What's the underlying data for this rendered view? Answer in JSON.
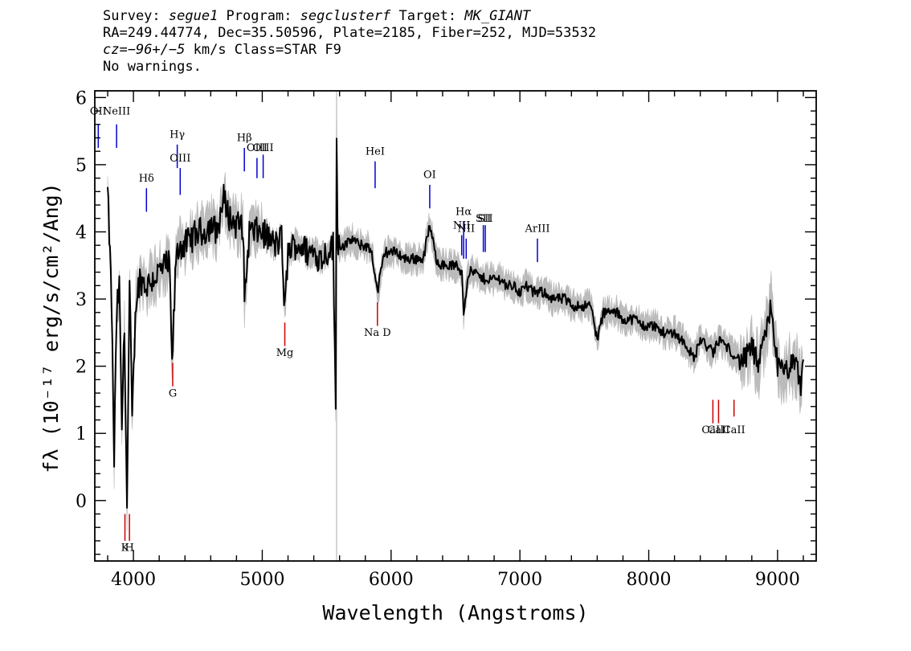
{
  "header": {
    "survey_label": "Survey: ",
    "survey": "segue1",
    "program_label": " Program: ",
    "program": "segclusterf",
    "target_label": " Target: ",
    "target": "MK_GIANT",
    "line2": "RA=249.44774, Dec=35.50596, Plate=2185, Fiber=252, MJD=53532",
    "cz_label": "cz",
    "cz_value": "=−96+/−5",
    "cz_rest": " km/s Class=STAR F9",
    "line4": "No warnings."
  },
  "chart_data": {
    "type": "line",
    "title": "",
    "xlabel": "Wavelength (Angstroms)",
    "ylabel": "fλ (10⁻¹⁷ erg/s/cm²/Ang)",
    "xlim": [
      3700,
      9300
    ],
    "ylim": [
      -0.9,
      6.1
    ],
    "x_ticks": [
      4000,
      5000,
      6000,
      7000,
      8000,
      9000
    ],
    "y_ticks": [
      0,
      1,
      2,
      3,
      4,
      5,
      6
    ],
    "grid": false,
    "colors": {
      "flux": "#000000",
      "error": "#bbbbbb",
      "emission": "#0000cc",
      "absorption": "#cc0000",
      "sky": "#c8c8c8"
    },
    "sky_line_x": 5577,
    "series": [
      {
        "name": "flux",
        "x": [
          3800,
          3830,
          3850,
          3870,
          3890,
          3910,
          3930,
          3950,
          3970,
          3990,
          4020,
          4050,
          4100,
          4150,
          4200,
          4250,
          4280,
          4300,
          4330,
          4360,
          4400,
          4450,
          4500,
          4550,
          4600,
          4650,
          4700,
          4750,
          4800,
          4850,
          4862,
          4900,
          4950,
          5000,
          5050,
          5100,
          5150,
          5175,
          5200,
          5250,
          5300,
          5350,
          5400,
          5450,
          5500,
          5550,
          5570,
          5577,
          5585,
          5600,
          5650,
          5700,
          5750,
          5800,
          5850,
          5893,
          5950,
          6000,
          6050,
          6100,
          6150,
          6200,
          6250,
          6300,
          6350,
          6400,
          6450,
          6500,
          6550,
          6563,
          6600,
          6650,
          6700,
          6750,
          6800,
          6850,
          6900,
          6950,
          7000,
          7050,
          7100,
          7150,
          7200,
          7250,
          7300,
          7350,
          7400,
          7450,
          7500,
          7550,
          7600,
          7650,
          7700,
          7750,
          7800,
          7850,
          7900,
          7950,
          8000,
          8050,
          8100,
          8150,
          8200,
          8250,
          8300,
          8350,
          8400,
          8450,
          8500,
          8550,
          8600,
          8650,
          8700,
          8750,
          8800,
          8850,
          8900,
          8950,
          9000,
          9050,
          9100,
          9150,
          9180,
          9200
        ],
        "y": [
          4.6,
          3.0,
          0.6,
          2.8,
          3.2,
          1.1,
          2.6,
          -0.1,
          3.2,
          1.2,
          3.0,
          3.3,
          3.2,
          3.3,
          3.4,
          3.5,
          3.5,
          2.0,
          3.6,
          3.8,
          3.8,
          3.9,
          4.0,
          4.0,
          4.1,
          4.0,
          4.5,
          4.2,
          4.1,
          4.1,
          3.0,
          4.0,
          4.0,
          4.0,
          3.9,
          3.8,
          3.9,
          2.8,
          3.7,
          3.8,
          3.8,
          3.7,
          3.7,
          3.6,
          3.7,
          3.8,
          1.3,
          5.6,
          3.9,
          3.8,
          3.8,
          3.9,
          3.8,
          3.8,
          3.7,
          3.1,
          3.7,
          3.7,
          3.7,
          3.6,
          3.6,
          3.6,
          3.6,
          4.1,
          3.6,
          3.5,
          3.5,
          3.5,
          3.4,
          2.8,
          3.4,
          3.4,
          3.3,
          3.3,
          3.3,
          3.3,
          3.2,
          3.2,
          3.1,
          3.2,
          3.1,
          3.1,
          3.1,
          3.0,
          3.0,
          3.0,
          2.9,
          2.9,
          2.9,
          2.9,
          2.4,
          2.8,
          2.8,
          2.8,
          2.7,
          2.7,
          2.7,
          2.6,
          2.6,
          2.6,
          2.5,
          2.5,
          2.5,
          2.4,
          2.3,
          2.1,
          2.4,
          2.3,
          2.2,
          2.4,
          2.3,
          2.2,
          2.1,
          2.1,
          2.3,
          2.0,
          2.4,
          2.9,
          2.0,
          1.9,
          2.0,
          2.0,
          1.7,
          2.1
        ]
      }
    ],
    "lines": [
      {
        "label": "OII",
        "x": 3727,
        "kind": "emission",
        "y0": 5.25,
        "y1": 5.6,
        "label_y": 5.75
      },
      {
        "label": "NeIII",
        "x": 3869,
        "kind": "emission",
        "y0": 5.25,
        "y1": 5.6,
        "label_y": 5.75
      },
      {
        "label": "Hδ",
        "x": 4101,
        "kind": "emission",
        "y0": 4.3,
        "y1": 4.65,
        "label_y": 4.75
      },
      {
        "label": "Hγ",
        "x": 4340,
        "kind": "emission",
        "y0": 4.95,
        "y1": 5.3,
        "label_y": 5.4
      },
      {
        "label": "OIII",
        "x": 4363,
        "kind": "emission",
        "y0": 4.55,
        "y1": 4.95,
        "label_y": 5.05
      },
      {
        "label": "Hβ",
        "x": 4861,
        "kind": "emission",
        "y0": 4.9,
        "y1": 5.25,
        "label_y": 5.35
      },
      {
        "label": "OIII",
        "x": 4959,
        "kind": "emission",
        "y0": 4.8,
        "y1": 5.1,
        "label_y": 5.2
      },
      {
        "label": "OIII",
        "x": 5007,
        "kind": "emission",
        "y0": 4.8,
        "y1": 5.15,
        "label_y": 5.2
      },
      {
        "label": "HeI",
        "x": 5876,
        "kind": "emission",
        "y0": 4.65,
        "y1": 5.05,
        "label_y": 5.15
      },
      {
        "label": "OI",
        "x": 6300,
        "kind": "emission",
        "y0": 4.35,
        "y1": 4.7,
        "label_y": 4.8
      },
      {
        "label": "NII",
        "x": 6548,
        "kind": "emission",
        "y0": 3.65,
        "y1": 3.95,
        "label_y": 4.05
      },
      {
        "label": "Hα",
        "x": 6563,
        "kind": "emission",
        "y0": 3.6,
        "y1": 4.15,
        "label_y": 4.25
      },
      {
        "label": "NII",
        "x": 6583,
        "kind": "emission",
        "y0": 3.6,
        "y1": 3.9,
        "label_y": 4.0
      },
      {
        "label": "SII",
        "x": 6716,
        "kind": "emission",
        "y0": 3.7,
        "y1": 4.1,
        "label_y": 4.15
      },
      {
        "label": "SII",
        "x": 6731,
        "kind": "emission",
        "y0": 3.7,
        "y1": 4.1,
        "label_y": 4.15
      },
      {
        "label": "ArIII",
        "x": 7136,
        "kind": "emission",
        "y0": 3.55,
        "y1": 3.9,
        "label_y": 4.0
      },
      {
        "label": "K",
        "x": 3934,
        "kind": "absorption",
        "y0": -0.6,
        "y1": -0.2,
        "label_y": -0.75
      },
      {
        "label": "H",
        "x": 3969,
        "kind": "absorption",
        "y0": -0.6,
        "y1": -0.2,
        "label_y": -0.75
      },
      {
        "label": "G",
        "x": 4305,
        "kind": "absorption",
        "y0": 1.7,
        "y1": 2.05,
        "label_y": 1.55
      },
      {
        "label": "Mg",
        "x": 5175,
        "kind": "absorption",
        "y0": 2.3,
        "y1": 2.65,
        "label_y": 2.15
      },
      {
        "label": "Na D",
        "x": 5894,
        "kind": "absorption",
        "y0": 2.6,
        "y1": 2.95,
        "label_y": 2.45
      },
      {
        "label": "CaII",
        "x": 8498,
        "kind": "absorption",
        "y0": 1.15,
        "y1": 1.5,
        "label_y": 1.0
      },
      {
        "label": "CaII",
        "x": 8542,
        "kind": "absorption",
        "y0": 1.15,
        "y1": 1.5,
        "label_y": 1.0
      },
      {
        "label": "CaII",
        "x": 8662,
        "kind": "absorption",
        "y0": 1.25,
        "y1": 1.5,
        "label_y": 1.0
      }
    ]
  }
}
